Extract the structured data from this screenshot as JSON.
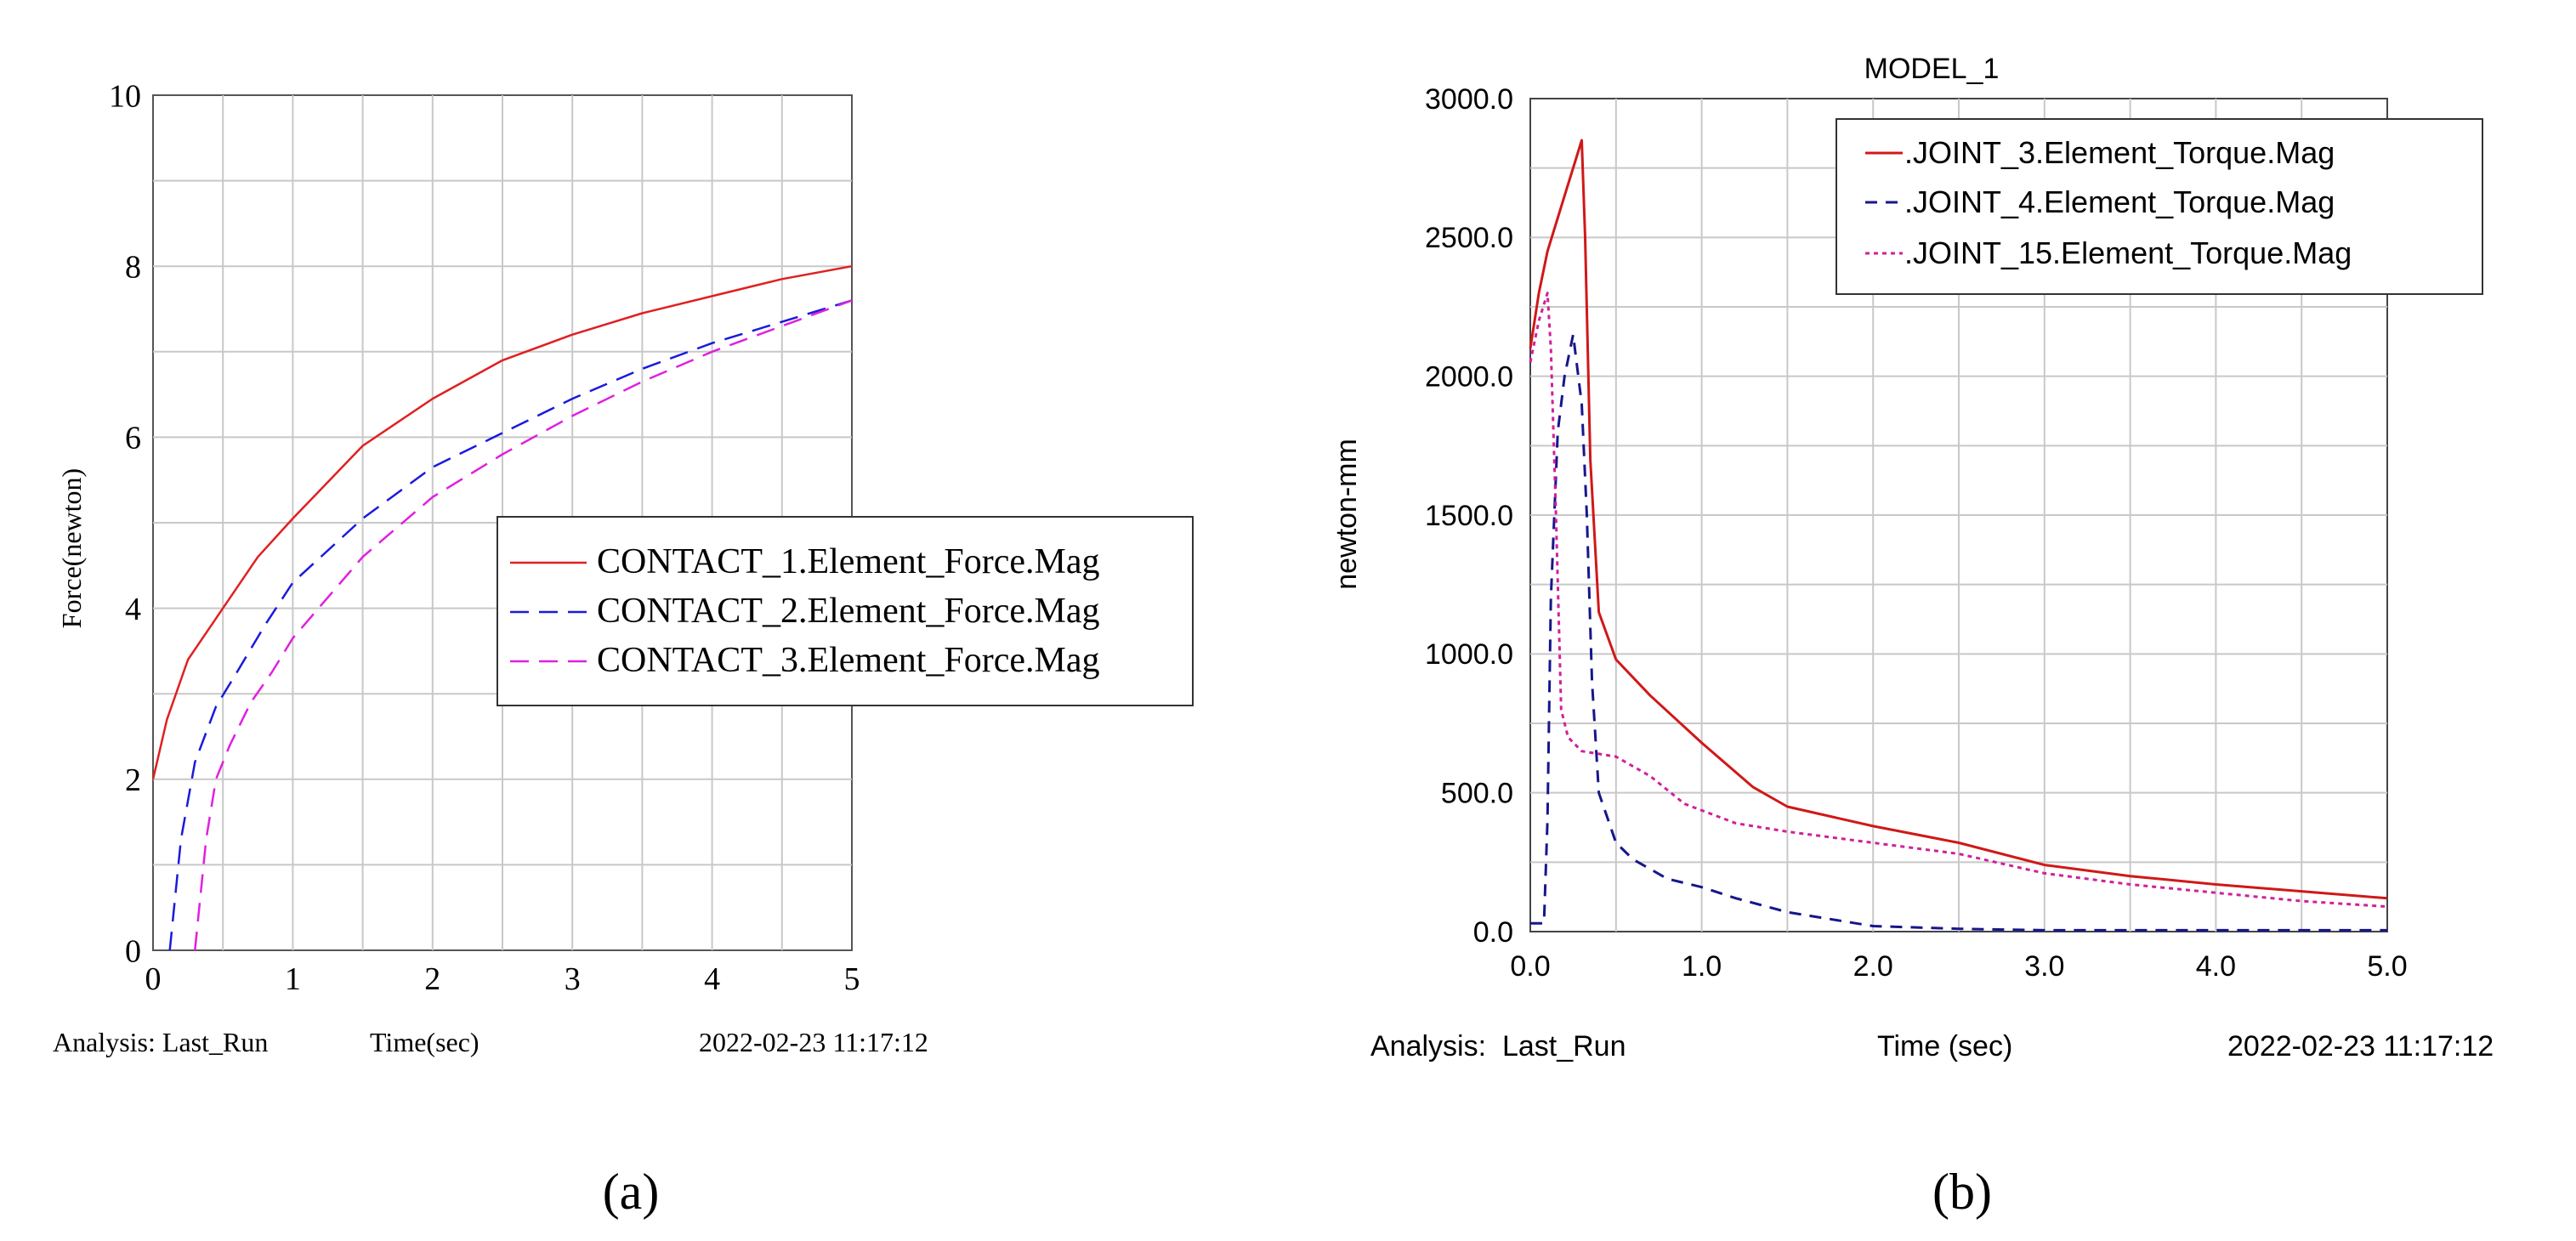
{
  "chart_data": [
    {
      "type": "line",
      "panel_label": "(a)",
      "title": "",
      "xlabel": "Time(sec)",
      "ylabel": "Force(newton)",
      "xlim": [
        0,
        5
      ],
      "ylim": [
        0,
        10
      ],
      "x_ticks": [
        "0",
        "1",
        "2",
        "3",
        "4",
        "5"
      ],
      "y_ticks": [
        "0",
        "2",
        "4",
        "6",
        "8",
        "10"
      ],
      "grid": true,
      "legend_position": "center-right",
      "footer_left": "Analysis: Last_Run",
      "footer_right": "2022-02-23 11:17:12",
      "colors": {
        "red": "#e02020",
        "blue": "#1a1add",
        "magenta": "#e020e0"
      },
      "series": [
        {
          "name": "CONTACT_1.Element_Force.Mag",
          "color": "#e02020",
          "dash": "solid",
          "x": [
            0,
            0.1,
            0.25,
            0.5,
            0.75,
            1.0,
            1.5,
            2.0,
            2.5,
            3.0,
            3.5,
            4.0,
            4.5,
            5.0
          ],
          "y": [
            2.0,
            2.7,
            3.4,
            4.0,
            4.6,
            5.05,
            5.9,
            6.45,
            6.9,
            7.2,
            7.45,
            7.65,
            7.85,
            8.0
          ]
        },
        {
          "name": "CONTACT_2.Element_Force.Mag",
          "color": "#1a1add",
          "dash": "dashed",
          "x": [
            0.12,
            0.2,
            0.3,
            0.45,
            0.6,
            0.8,
            1.0,
            1.5,
            2.0,
            2.5,
            3.0,
            3.5,
            4.0,
            4.5,
            5.0
          ],
          "y": [
            0,
            1.3,
            2.2,
            2.85,
            3.25,
            3.8,
            4.3,
            5.05,
            5.65,
            6.05,
            6.45,
            6.8,
            7.1,
            7.35,
            7.6
          ]
        },
        {
          "name": "CONTACT_3.Element_Force.Mag",
          "color": "#e020e0",
          "dash": "dashed",
          "x": [
            0.3,
            0.38,
            0.45,
            0.55,
            0.7,
            0.85,
            1.0,
            1.5,
            2.0,
            2.5,
            3.0,
            3.5,
            4.0,
            4.5,
            5.0
          ],
          "y": [
            0,
            1.3,
            2.0,
            2.4,
            2.9,
            3.25,
            3.65,
            4.6,
            5.3,
            5.8,
            6.25,
            6.65,
            7.0,
            7.3,
            7.6
          ]
        }
      ]
    },
    {
      "type": "line",
      "panel_label": "(b)",
      "title": "MODEL_1",
      "xlabel": "Time (sec)",
      "ylabel": "newton-mm",
      "xlim": [
        0,
        5
      ],
      "ylim": [
        0,
        3000
      ],
      "x_ticks": [
        "0.0",
        "1.0",
        "2.0",
        "3.0",
        "4.0",
        "5.0"
      ],
      "y_ticks": [
        "0.0",
        "500.0",
        "1000.0",
        "1500.0",
        "2000.0",
        "2500.0",
        "3000.0"
      ],
      "grid": true,
      "legend_position": "top-right",
      "footer_left": "Analysis:  Last_Run",
      "footer_right": "2022-02-23 11:17:12",
      "colors": {
        "red": "#d01818",
        "blue": "#16168c",
        "magenta": "#d0209a"
      },
      "series": [
        {
          "name": ".JOINT_3.Element_Torque.Mag",
          "color": "#d01818",
          "dash": "solid",
          "x": [
            0,
            0.05,
            0.1,
            0.2,
            0.3,
            0.32,
            0.35,
            0.4,
            0.5,
            0.7,
            1.0,
            1.3,
            1.5,
            2.0,
            2.5,
            3.0,
            3.5,
            4.0,
            4.5,
            5.0
          ],
          "y": [
            2100,
            2300,
            2450,
            2650,
            2850,
            2500,
            1700,
            1150,
            980,
            850,
            680,
            520,
            450,
            380,
            320,
            240,
            200,
            170,
            145,
            120
          ]
        },
        {
          "name": ".JOINT_4.Element_Torque.Mag",
          "color": "#16168c",
          "dash": "dashed",
          "x": [
            0,
            0.08,
            0.1,
            0.12,
            0.16,
            0.2,
            0.25,
            0.3,
            0.33,
            0.36,
            0.4,
            0.5,
            0.6,
            0.8,
            1.0,
            1.2,
            1.5,
            2.0,
            2.5,
            3.0,
            4.0,
            5.0
          ],
          "y": [
            30,
            30,
            400,
            1200,
            1800,
            2000,
            2150,
            1900,
            1500,
            900,
            500,
            320,
            260,
            190,
            160,
            120,
            70,
            20,
            10,
            5,
            5,
            5
          ]
        },
        {
          "name": ".JOINT_15.Element_Torque.Mag",
          "color": "#d0209a",
          "dash": "dotted",
          "x": [
            0,
            0.05,
            0.1,
            0.12,
            0.15,
            0.18,
            0.22,
            0.3,
            0.4,
            0.5,
            0.7,
            0.9,
            1.2,
            1.5,
            2.0,
            2.5,
            3.0,
            3.5,
            4.0,
            4.5,
            5.0
          ],
          "y": [
            2050,
            2200,
            2300,
            2100,
            1500,
            800,
            700,
            650,
            640,
            630,
            560,
            460,
            390,
            360,
            320,
            280,
            210,
            170,
            140,
            110,
            90
          ]
        }
      ]
    }
  ]
}
